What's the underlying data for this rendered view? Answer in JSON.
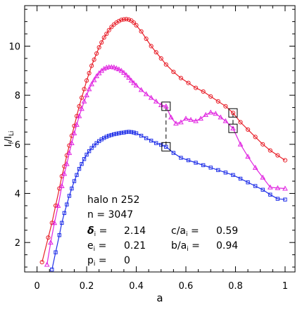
{
  "chart_data": {
    "type": "line",
    "xlabel": "a",
    "ylabel": "I_f/I_Li",
    "xlim": [
      -0.05,
      1.04
    ],
    "ylim": [
      0.8,
      11.65
    ],
    "grid": false,
    "x_ticks": [
      "0",
      "0.2",
      "0.4",
      "0.6",
      "0.8",
      "1"
    ],
    "y_ticks": [
      "2",
      "4",
      "6",
      "8",
      "10"
    ],
    "annotations": {
      "halo": "halo n 252",
      "n": "n = 3047",
      "delta": "2.14",
      "e": "0.21",
      "p": "0",
      "c_over_a": "0.59",
      "b_over_a": "0.94"
    },
    "markers": [
      {
        "x": 0.52,
        "y": 7.55,
        "shape": "box"
      },
      {
        "x": 0.52,
        "y": 5.9,
        "shape": "box"
      },
      {
        "x": 0.79,
        "y": 7.28,
        "shape": "box"
      },
      {
        "x": 0.79,
        "y": 6.65,
        "shape": "box"
      }
    ],
    "dashed_links": [
      {
        "x": 0.52,
        "y1": 7.55,
        "y2": 5.9
      },
      {
        "x": 0.79,
        "y1": 7.28,
        "y2": 6.65
      }
    ],
    "series": [
      {
        "color": "#e8202a",
        "marker": "circle",
        "x": [
          0.02,
          0.045,
          0.06,
          0.075,
          0.09,
          0.1,
          0.11,
          0.12,
          0.13,
          0.14,
          0.15,
          0.16,
          0.17,
          0.18,
          0.19,
          0.2,
          0.21,
          0.22,
          0.23,
          0.24,
          0.25,
          0.26,
          0.27,
          0.28,
          0.29,
          0.3,
          0.31,
          0.32,
          0.33,
          0.34,
          0.35,
          0.36,
          0.37,
          0.38,
          0.39,
          0.4,
          0.42,
          0.44,
          0.46,
          0.48,
          0.5,
          0.52,
          0.55,
          0.58,
          0.61,
          0.64,
          0.67,
          0.7,
          0.73,
          0.76,
          0.79,
          0.82,
          0.85,
          0.88,
          0.91,
          0.94,
          0.97,
          1.0
        ],
        "y": [
          1.2,
          2.2,
          2.8,
          3.5,
          4.2,
          4.7,
          5.1,
          5.55,
          5.95,
          6.35,
          6.75,
          7.15,
          7.55,
          7.9,
          8.25,
          8.6,
          8.9,
          9.2,
          9.45,
          9.7,
          9.95,
          10.15,
          10.35,
          10.5,
          10.65,
          10.78,
          10.88,
          10.96,
          11.02,
          11.07,
          11.09,
          11.1,
          11.08,
          11.04,
          10.96,
          10.85,
          10.6,
          10.3,
          10.0,
          9.75,
          9.5,
          9.25,
          8.95,
          8.7,
          8.5,
          8.3,
          8.15,
          7.95,
          7.75,
          7.55,
          7.28,
          6.9,
          6.6,
          6.3,
          6.0,
          5.75,
          5.55,
          5.35
        ]
      },
      {
        "color": "#e024e0",
        "marker": "triangle",
        "x": [
          0.04,
          0.055,
          0.07,
          0.085,
          0.1,
          0.11,
          0.12,
          0.13,
          0.14,
          0.15,
          0.16,
          0.17,
          0.18,
          0.19,
          0.2,
          0.21,
          0.22,
          0.23,
          0.24,
          0.25,
          0.26,
          0.27,
          0.28,
          0.29,
          0.3,
          0.31,
          0.32,
          0.33,
          0.34,
          0.35,
          0.36,
          0.37,
          0.38,
          0.39,
          0.4,
          0.42,
          0.44,
          0.46,
          0.48,
          0.5,
          0.52,
          0.54,
          0.56,
          0.58,
          0.6,
          0.62,
          0.64,
          0.66,
          0.68,
          0.7,
          0.72,
          0.74,
          0.76,
          0.79,
          0.82,
          0.85,
          0.88,
          0.91,
          0.94,
          0.97,
          1.0
        ],
        "y": [
          1.1,
          2.0,
          2.8,
          3.5,
          4.3,
          4.8,
          5.2,
          5.65,
          6.05,
          6.45,
          6.8,
          7.15,
          7.45,
          7.75,
          8.0,
          8.25,
          8.45,
          8.62,
          8.78,
          8.9,
          9.0,
          9.08,
          9.13,
          9.15,
          9.15,
          9.14,
          9.1,
          9.06,
          9.0,
          8.92,
          8.82,
          8.72,
          8.6,
          8.5,
          8.4,
          8.22,
          8.05,
          7.9,
          7.75,
          7.6,
          7.55,
          7.1,
          6.85,
          6.9,
          7.05,
          7.0,
          6.95,
          7.05,
          7.2,
          7.3,
          7.25,
          7.1,
          6.95,
          6.65,
          6.0,
          5.5,
          5.05,
          4.65,
          4.25,
          4.22,
          4.2
        ]
      },
      {
        "color": "#2030e8",
        "marker": "square",
        "x": [
          0.06,
          0.075,
          0.09,
          0.1,
          0.11,
          0.12,
          0.13,
          0.14,
          0.15,
          0.16,
          0.17,
          0.18,
          0.19,
          0.2,
          0.21,
          0.22,
          0.23,
          0.24,
          0.25,
          0.26,
          0.27,
          0.28,
          0.29,
          0.3,
          0.31,
          0.32,
          0.33,
          0.34,
          0.35,
          0.36,
          0.37,
          0.38,
          0.39,
          0.4,
          0.42,
          0.44,
          0.46,
          0.48,
          0.5,
          0.52,
          0.55,
          0.58,
          0.61,
          0.64,
          0.67,
          0.7,
          0.73,
          0.76,
          0.79,
          0.82,
          0.85,
          0.88,
          0.91,
          0.94,
          0.97,
          1.0
        ],
        "y": [
          0.9,
          1.6,
          2.3,
          2.8,
          3.2,
          3.55,
          3.9,
          4.2,
          4.5,
          4.75,
          5.0,
          5.2,
          5.4,
          5.58,
          5.72,
          5.85,
          5.95,
          6.05,
          6.13,
          6.2,
          6.26,
          6.31,
          6.35,
          6.38,
          6.41,
          6.43,
          6.45,
          6.47,
          6.48,
          6.5,
          6.51,
          6.5,
          6.48,
          6.45,
          6.35,
          6.25,
          6.15,
          6.05,
          5.98,
          5.9,
          5.65,
          5.45,
          5.35,
          5.25,
          5.15,
          5.05,
          4.95,
          4.85,
          4.75,
          4.6,
          4.45,
          4.3,
          4.15,
          3.95,
          3.78,
          3.75
        ]
      }
    ]
  }
}
